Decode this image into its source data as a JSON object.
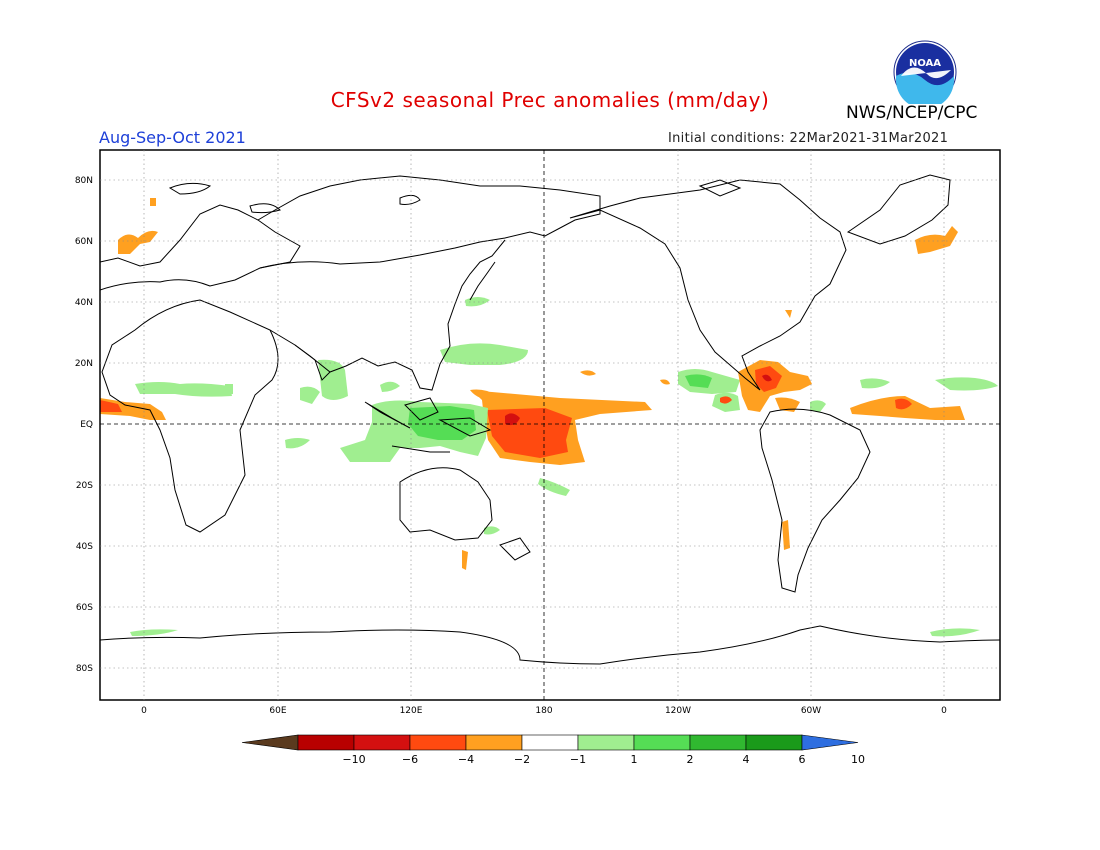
{
  "header": {
    "title": "CFSv2 seasonal Prec anomalies (mm/day)",
    "organization": "NWS/NCEP/CPC",
    "season": "Aug-Sep-Oct 2021",
    "initial_conditions": "Initial conditions: 22Mar2021-31Mar2021",
    "logo_text": "NOAA"
  },
  "axes": {
    "lat_labels": [
      "80N",
      "60N",
      "40N",
      "20N",
      "EQ",
      "20S",
      "40S",
      "60S",
      "80S"
    ],
    "lon_labels": [
      "0",
      "60E",
      "120E",
      "180",
      "120W",
      "60W",
      "0"
    ]
  },
  "colorbar": {
    "labels": [
      "-10",
      "-6",
      "-4",
      "-2",
      "-1",
      "1",
      "2",
      "4",
      "6",
      "10"
    ],
    "colors": [
      "#5a3a1e",
      "#b80000",
      "#d41010",
      "#ff4a10",
      "#ffa020",
      "#ffffff",
      "#a0ee90",
      "#55dd55",
      "#30b830",
      "#1a9a1a",
      "#2e6ee0"
    ]
  },
  "colors": {
    "title": "#e00000",
    "season": "#1e40d8",
    "neg1": "#ffa020",
    "neg2": "#ff4a10",
    "neg3": "#d41010",
    "pos1": "#a0ee90",
    "pos2": "#55dd55"
  }
}
